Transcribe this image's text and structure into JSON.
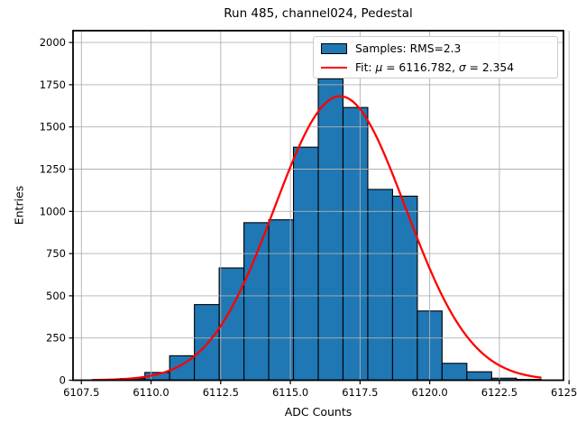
{
  "figure": {
    "title": "Run 485, channel024, Pedestal",
    "xlabel": "ADC Counts",
    "ylabel": "Entries"
  },
  "legend": {
    "position": "upper right",
    "samples_label": "Samples: RMS=2.3",
    "fit_label": "Fit: μ = 6116.782, σ = 2.354",
    "fit_label_parts": [
      {
        "text": "Fit: ",
        "italic": false
      },
      {
        "text": "μ",
        "italic": true
      },
      {
        "text": " = 6116.782, ",
        "italic": false
      },
      {
        "text": "σ",
        "italic": true
      },
      {
        "text": " = 2.354",
        "italic": false
      }
    ],
    "patch_color": "#1f77b4",
    "line_color": "#ff0000"
  },
  "chart_data": {
    "type": "bar",
    "subtype": "histogram-with-gaussian-fit",
    "title": "Run 485, channel024, Pedestal",
    "xlabel": "ADC Counts",
    "ylabel": "Entries",
    "bin_edges": [
      6108.0,
      6108.889,
      6109.778,
      6110.667,
      6111.556,
      6112.444,
      6113.333,
      6114.222,
      6115.111,
      6116.0,
      6116.889,
      6117.778,
      6118.667,
      6119.556,
      6120.444,
      6121.333,
      6122.222,
      6123.111,
      6124.0
    ],
    "counts": [
      2,
      10,
      46,
      145,
      448,
      665,
      933,
      950,
      1380,
      1785,
      1615,
      1130,
      1090,
      410,
      100,
      50,
      12,
      5
    ],
    "series_label": "Samples: RMS=2.3",
    "rms": 2.3,
    "fit": {
      "label": "Fit: μ = 6116.782, σ = 2.354",
      "mu": 6116.782,
      "sigma": 2.354,
      "amplitude": 1682,
      "color": "#ff0000",
      "xstart": 6107.9,
      "xend": 6124.05
    },
    "bar_fill": "#1f77b4",
    "bar_edge": "#000000",
    "xlim": [
      6107.2,
      6124.8
    ],
    "ylim": [
      0,
      2070
    ],
    "xticks": {
      "values": [
        6107.5,
        6110.0,
        6112.5,
        6115.0,
        6117.5,
        6120.0,
        6122.5,
        6125.0
      ],
      "labels": [
        "6107.5",
        "6110.0",
        "6112.5",
        "6115.0",
        "6117.5",
        "6120.0",
        "6122.5",
        "6125.0"
      ]
    },
    "yticks": {
      "values": [
        0,
        250,
        500,
        750,
        1000,
        1250,
        1500,
        1750,
        2000
      ],
      "labels": [
        "0",
        "250",
        "500",
        "750",
        "1000",
        "1250",
        "1500",
        "1750",
        "2000"
      ]
    },
    "grid": true,
    "grid_color": "#b0b0b0",
    "legend_position": "upper right"
  }
}
